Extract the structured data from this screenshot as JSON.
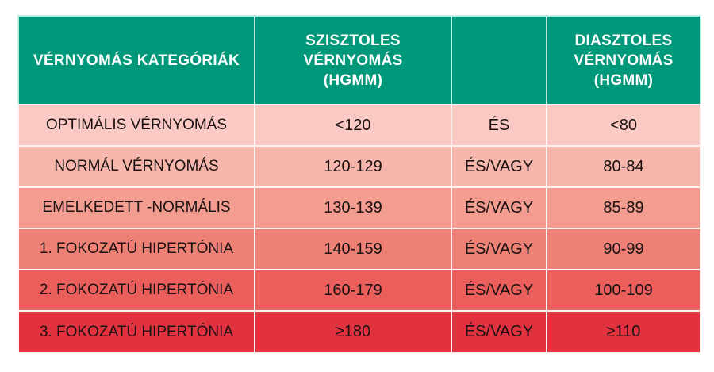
{
  "table": {
    "header_color": "#00987a",
    "headers": {
      "category": "VÉRNYOMÁS KATEGÓRIÁK",
      "systolic_line1": "SZISZTOLES",
      "systolic_line2": "VÉRNYOMÁS",
      "systolic_line3": "(HGMM)",
      "operator": "",
      "diastolic_line1": "DIASZTOLES",
      "diastolic_line2": "VÉRNYOMÁS",
      "diastolic_line3": "(HGMM)"
    },
    "rows": [
      {
        "category": "OPTIMÁLIS VÉRNYOMÁS",
        "systolic": "<120",
        "operator": "ÉS",
        "diastolic": "<80",
        "color": "#fbc9c3"
      },
      {
        "category": "NORMÁL VÉRNYOMÁS",
        "systolic": "120-129",
        "operator": "ÉS/VAGY",
        "diastolic": "80-84",
        "color": "#f7b6ac"
      },
      {
        "category": "EMELKEDETT -NORMÁLIS",
        "systolic": "130-139",
        "operator": "ÉS/VAGY",
        "diastolic": "85-89",
        "color": "#f39d90"
      },
      {
        "category": "1. FOKOZATÚ HIPERTÓNIA",
        "systolic": "140-159",
        "operator": "ÉS/VAGY",
        "diastolic": "90-99",
        "color": "#ee8175"
      },
      {
        "category": "2. FOKOZATÚ HIPERTÓNIA",
        "systolic": "160-179",
        "operator": "ÉS/VAGY",
        "diastolic": "100-109",
        "color": "#ea5f5b"
      },
      {
        "category": "3. FOKOZATÚ HIPERTÓNIA",
        "systolic": "≥180",
        "operator": "ÉS/VAGY",
        "diastolic": "≥110",
        "color": "#e3323f"
      }
    ]
  }
}
